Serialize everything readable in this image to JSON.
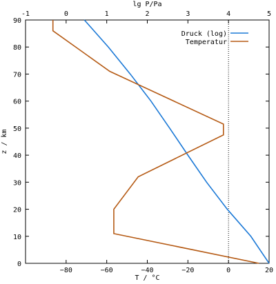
{
  "chart_data": {
    "type": "line",
    "top_axis": {
      "label": "lg P/Pa",
      "range": [
        -1,
        5
      ],
      "ticks": [
        -1,
        0,
        1,
        2,
        3,
        4,
        5
      ]
    },
    "bottom_axis": {
      "label": "T / °C",
      "range": [
        -100,
        20
      ],
      "ticks": [
        -80,
        -60,
        -40,
        -20,
        0,
        20
      ],
      "tick_labels": [
        "−80",
        "−60",
        "−40",
        "−20",
        "0",
        "20"
      ]
    },
    "left_axis": {
      "label": "z / km",
      "range": [
        0,
        90
      ],
      "ticks": [
        0,
        10,
        20,
        30,
        40,
        50,
        60,
        70,
        80,
        90
      ]
    },
    "reference_line": {
      "axis": "T",
      "value": 0,
      "style": "dotted"
    },
    "legend": {
      "position": "top-right"
    },
    "series": [
      {
        "name": "Druck (log)",
        "axis": "top",
        "color": "#1a78d6",
        "points": [
          [
            5.0,
            0
          ],
          [
            4.55,
            10
          ],
          [
            3.97,
            20
          ],
          [
            3.46,
            30
          ],
          [
            3.0,
            40
          ],
          [
            2.55,
            50
          ],
          [
            2.09,
            60
          ],
          [
            1.58,
            70
          ],
          [
            1.04,
            80
          ],
          [
            0.45,
            90
          ]
        ]
      },
      {
        "name": "Temperatur",
        "axis": "bottom",
        "color": "#b55a14",
        "points": [
          [
            15,
            0
          ],
          [
            -56.5,
            11
          ],
          [
            -56.5,
            20
          ],
          [
            -44.5,
            32
          ],
          [
            -2.5,
            47.5
          ],
          [
            -2.5,
            51.5
          ],
          [
            -58.5,
            71
          ],
          [
            -86.5,
            86
          ],
          [
            -86.5,
            90
          ]
        ]
      }
    ]
  }
}
